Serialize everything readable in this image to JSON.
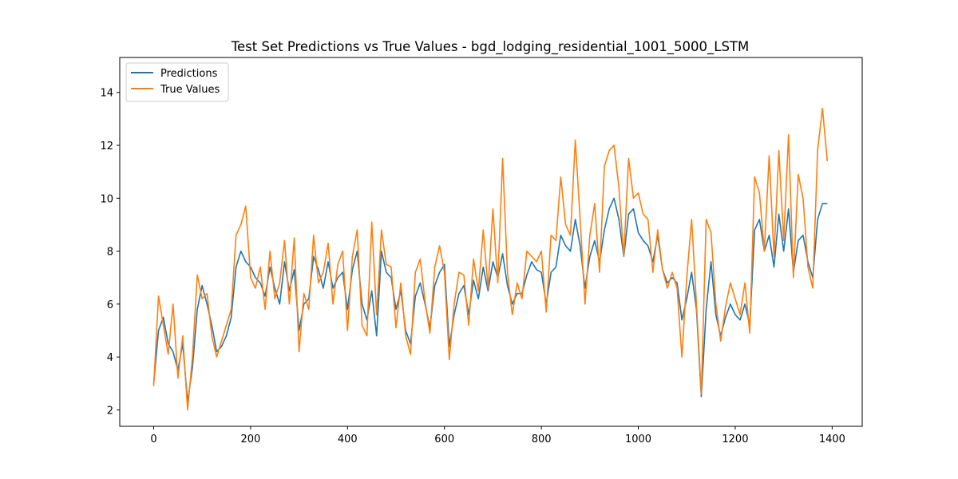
{
  "chart_data": {
    "type": "line",
    "title": "Test Set Predictions vs True Values - bgd_lodging_residential_1001_5000_LSTM",
    "xlabel": "",
    "ylabel": "",
    "xlim": [
      -70,
      1462
    ],
    "ylim": [
      1.38,
      15.32
    ],
    "x_ticks": [
      0,
      200,
      400,
      600,
      800,
      1000,
      1200,
      1400
    ],
    "y_ticks": [
      2,
      4,
      6,
      8,
      10,
      12,
      14
    ],
    "legend": {
      "placement": "upper left",
      "entries": [
        "Predictions",
        "True Values"
      ]
    },
    "grid": false,
    "series": [
      {
        "name": "Predictions",
        "color": "#1f77b4",
        "x": [
          0,
          10,
          20,
          30,
          40,
          50,
          60,
          70,
          80,
          90,
          100,
          110,
          120,
          130,
          140,
          150,
          160,
          170,
          180,
          190,
          200,
          210,
          220,
          230,
          240,
          250,
          260,
          270,
          280,
          290,
          300,
          310,
          320,
          330,
          340,
          350,
          360,
          370,
          380,
          390,
          400,
          410,
          420,
          430,
          440,
          450,
          460,
          470,
          480,
          490,
          500,
          510,
          520,
          530,
          540,
          550,
          560,
          570,
          580,
          590,
          600,
          610,
          620,
          630,
          640,
          650,
          660,
          670,
          680,
          690,
          700,
          710,
          720,
          730,
          740,
          750,
          760,
          770,
          780,
          790,
          800,
          810,
          820,
          830,
          840,
          850,
          860,
          870,
          880,
          890,
          900,
          910,
          920,
          930,
          940,
          950,
          960,
          970,
          980,
          990,
          1000,
          1010,
          1020,
          1030,
          1040,
          1050,
          1060,
          1070,
          1080,
          1090,
          1100,
          1110,
          1120,
          1130,
          1140,
          1150,
          1160,
          1170,
          1180,
          1190,
          1200,
          1210,
          1220,
          1230,
          1240,
          1250,
          1260,
          1270,
          1280,
          1290,
          1300,
          1310,
          1320,
          1330,
          1340,
          1350,
          1360,
          1370,
          1380,
          1390
        ],
        "values": [
          3.0,
          5.0,
          5.5,
          4.5,
          4.2,
          3.5,
          4.5,
          2.3,
          3.6,
          5.8,
          6.7,
          6.0,
          5.2,
          4.2,
          4.4,
          4.8,
          5.5,
          7.4,
          8.0,
          7.6,
          7.4,
          7.0,
          6.8,
          6.3,
          7.4,
          6.6,
          6.0,
          7.6,
          6.5,
          7.3,
          5.0,
          6.0,
          6.2,
          7.8,
          7.3,
          6.6,
          7.6,
          6.6,
          7.0,
          7.2,
          5.8,
          7.3,
          8.0,
          6.0,
          5.4,
          6.5,
          4.8,
          8.0,
          7.2,
          7.0,
          5.8,
          6.5,
          5.0,
          4.5,
          6.3,
          6.8,
          6.0,
          5.1,
          6.7,
          7.2,
          7.5,
          4.4,
          5.6,
          6.4,
          6.7,
          5.6,
          6.9,
          6.2,
          7.4,
          6.5,
          7.6,
          7.0,
          7.9,
          6.7,
          6.0,
          6.4,
          6.4,
          7.1,
          7.6,
          7.3,
          7.2,
          6.0,
          7.2,
          7.4,
          8.6,
          8.2,
          8.0,
          9.2,
          8.2,
          6.6,
          7.8,
          8.4,
          7.6,
          8.8,
          9.6,
          10.0,
          9.2,
          7.8,
          9.4,
          9.6,
          8.7,
          8.4,
          8.2,
          7.6,
          8.6,
          7.3,
          6.8,
          7.0,
          6.8,
          5.4,
          6.2,
          7.2,
          5.8,
          2.5,
          5.8,
          7.6,
          5.6,
          4.8,
          5.5,
          6.0,
          5.6,
          5.4,
          6.0,
          5.2,
          8.8,
          9.2,
          8.0,
          8.6,
          7.4,
          9.4,
          8.0,
          9.6,
          7.2,
          8.4,
          8.6,
          7.6,
          7.0,
          9.2,
          9.8,
          9.8
        ]
      },
      {
        "name": "True Values",
        "color": "#ff7f0e",
        "x": [
          0,
          10,
          20,
          30,
          40,
          50,
          60,
          70,
          80,
          90,
          100,
          110,
          120,
          130,
          140,
          150,
          160,
          170,
          180,
          190,
          200,
          210,
          220,
          230,
          240,
          250,
          260,
          270,
          280,
          290,
          300,
          310,
          320,
          330,
          340,
          350,
          360,
          370,
          380,
          390,
          400,
          410,
          420,
          430,
          440,
          450,
          460,
          470,
          480,
          490,
          500,
          510,
          520,
          530,
          540,
          550,
          560,
          570,
          580,
          590,
          600,
          610,
          620,
          630,
          640,
          650,
          660,
          670,
          680,
          690,
          700,
          710,
          720,
          730,
          740,
          750,
          760,
          770,
          780,
          790,
          800,
          810,
          820,
          830,
          840,
          850,
          860,
          870,
          880,
          890,
          900,
          910,
          920,
          930,
          940,
          950,
          960,
          970,
          980,
          990,
          1000,
          1010,
          1020,
          1030,
          1040,
          1050,
          1060,
          1070,
          1080,
          1090,
          1100,
          1110,
          1120,
          1130,
          1140,
          1150,
          1160,
          1170,
          1180,
          1190,
          1200,
          1210,
          1220,
          1230,
          1240,
          1250,
          1260,
          1270,
          1280,
          1290,
          1300,
          1310,
          1320,
          1330,
          1340,
          1350,
          1360,
          1370,
          1380,
          1390
        ],
        "values": [
          2.9,
          6.3,
          5.2,
          4.1,
          6.0,
          3.2,
          4.8,
          2.0,
          4.0,
          7.1,
          6.2,
          6.4,
          4.8,
          4.0,
          4.6,
          5.2,
          5.8,
          8.6,
          9.0,
          9.7,
          7.0,
          6.6,
          7.4,
          5.8,
          8.0,
          6.2,
          6.8,
          8.4,
          6.0,
          8.5,
          4.2,
          6.4,
          5.8,
          8.6,
          6.8,
          7.2,
          8.3,
          6.0,
          7.5,
          8.0,
          5.0,
          7.8,
          8.8,
          5.2,
          4.8,
          9.1,
          5.6,
          8.8,
          7.5,
          7.4,
          5.1,
          6.8,
          4.8,
          4.1,
          7.2,
          7.7,
          6.1,
          4.9,
          7.4,
          8.2,
          7.2,
          3.9,
          6.0,
          7.2,
          7.1,
          5.2,
          7.7,
          6.5,
          8.8,
          6.6,
          9.6,
          6.8,
          11.5,
          7.2,
          5.6,
          6.8,
          6.2,
          8.0,
          7.8,
          7.6,
          8.0,
          5.7,
          8.6,
          8.4,
          10.8,
          9.0,
          8.6,
          12.2,
          9.2,
          6.0,
          8.6,
          9.8,
          7.2,
          11.2,
          11.8,
          12.0,
          10.4,
          7.8,
          11.5,
          10.0,
          10.2,
          9.4,
          9.2,
          7.2,
          8.8,
          7.3,
          6.6,
          7.2,
          6.6,
          4.0,
          7.0,
          9.2,
          6.0,
          2.6,
          9.2,
          8.7,
          6.0,
          4.6,
          5.9,
          6.8,
          6.2,
          5.6,
          6.8,
          4.9,
          10.8,
          10.2,
          8.0,
          11.6,
          7.8,
          11.8,
          8.4,
          12.4,
          7.0,
          10.9,
          10.0,
          7.4,
          6.6,
          11.8,
          13.4,
          11.4
        ]
      }
    ]
  }
}
